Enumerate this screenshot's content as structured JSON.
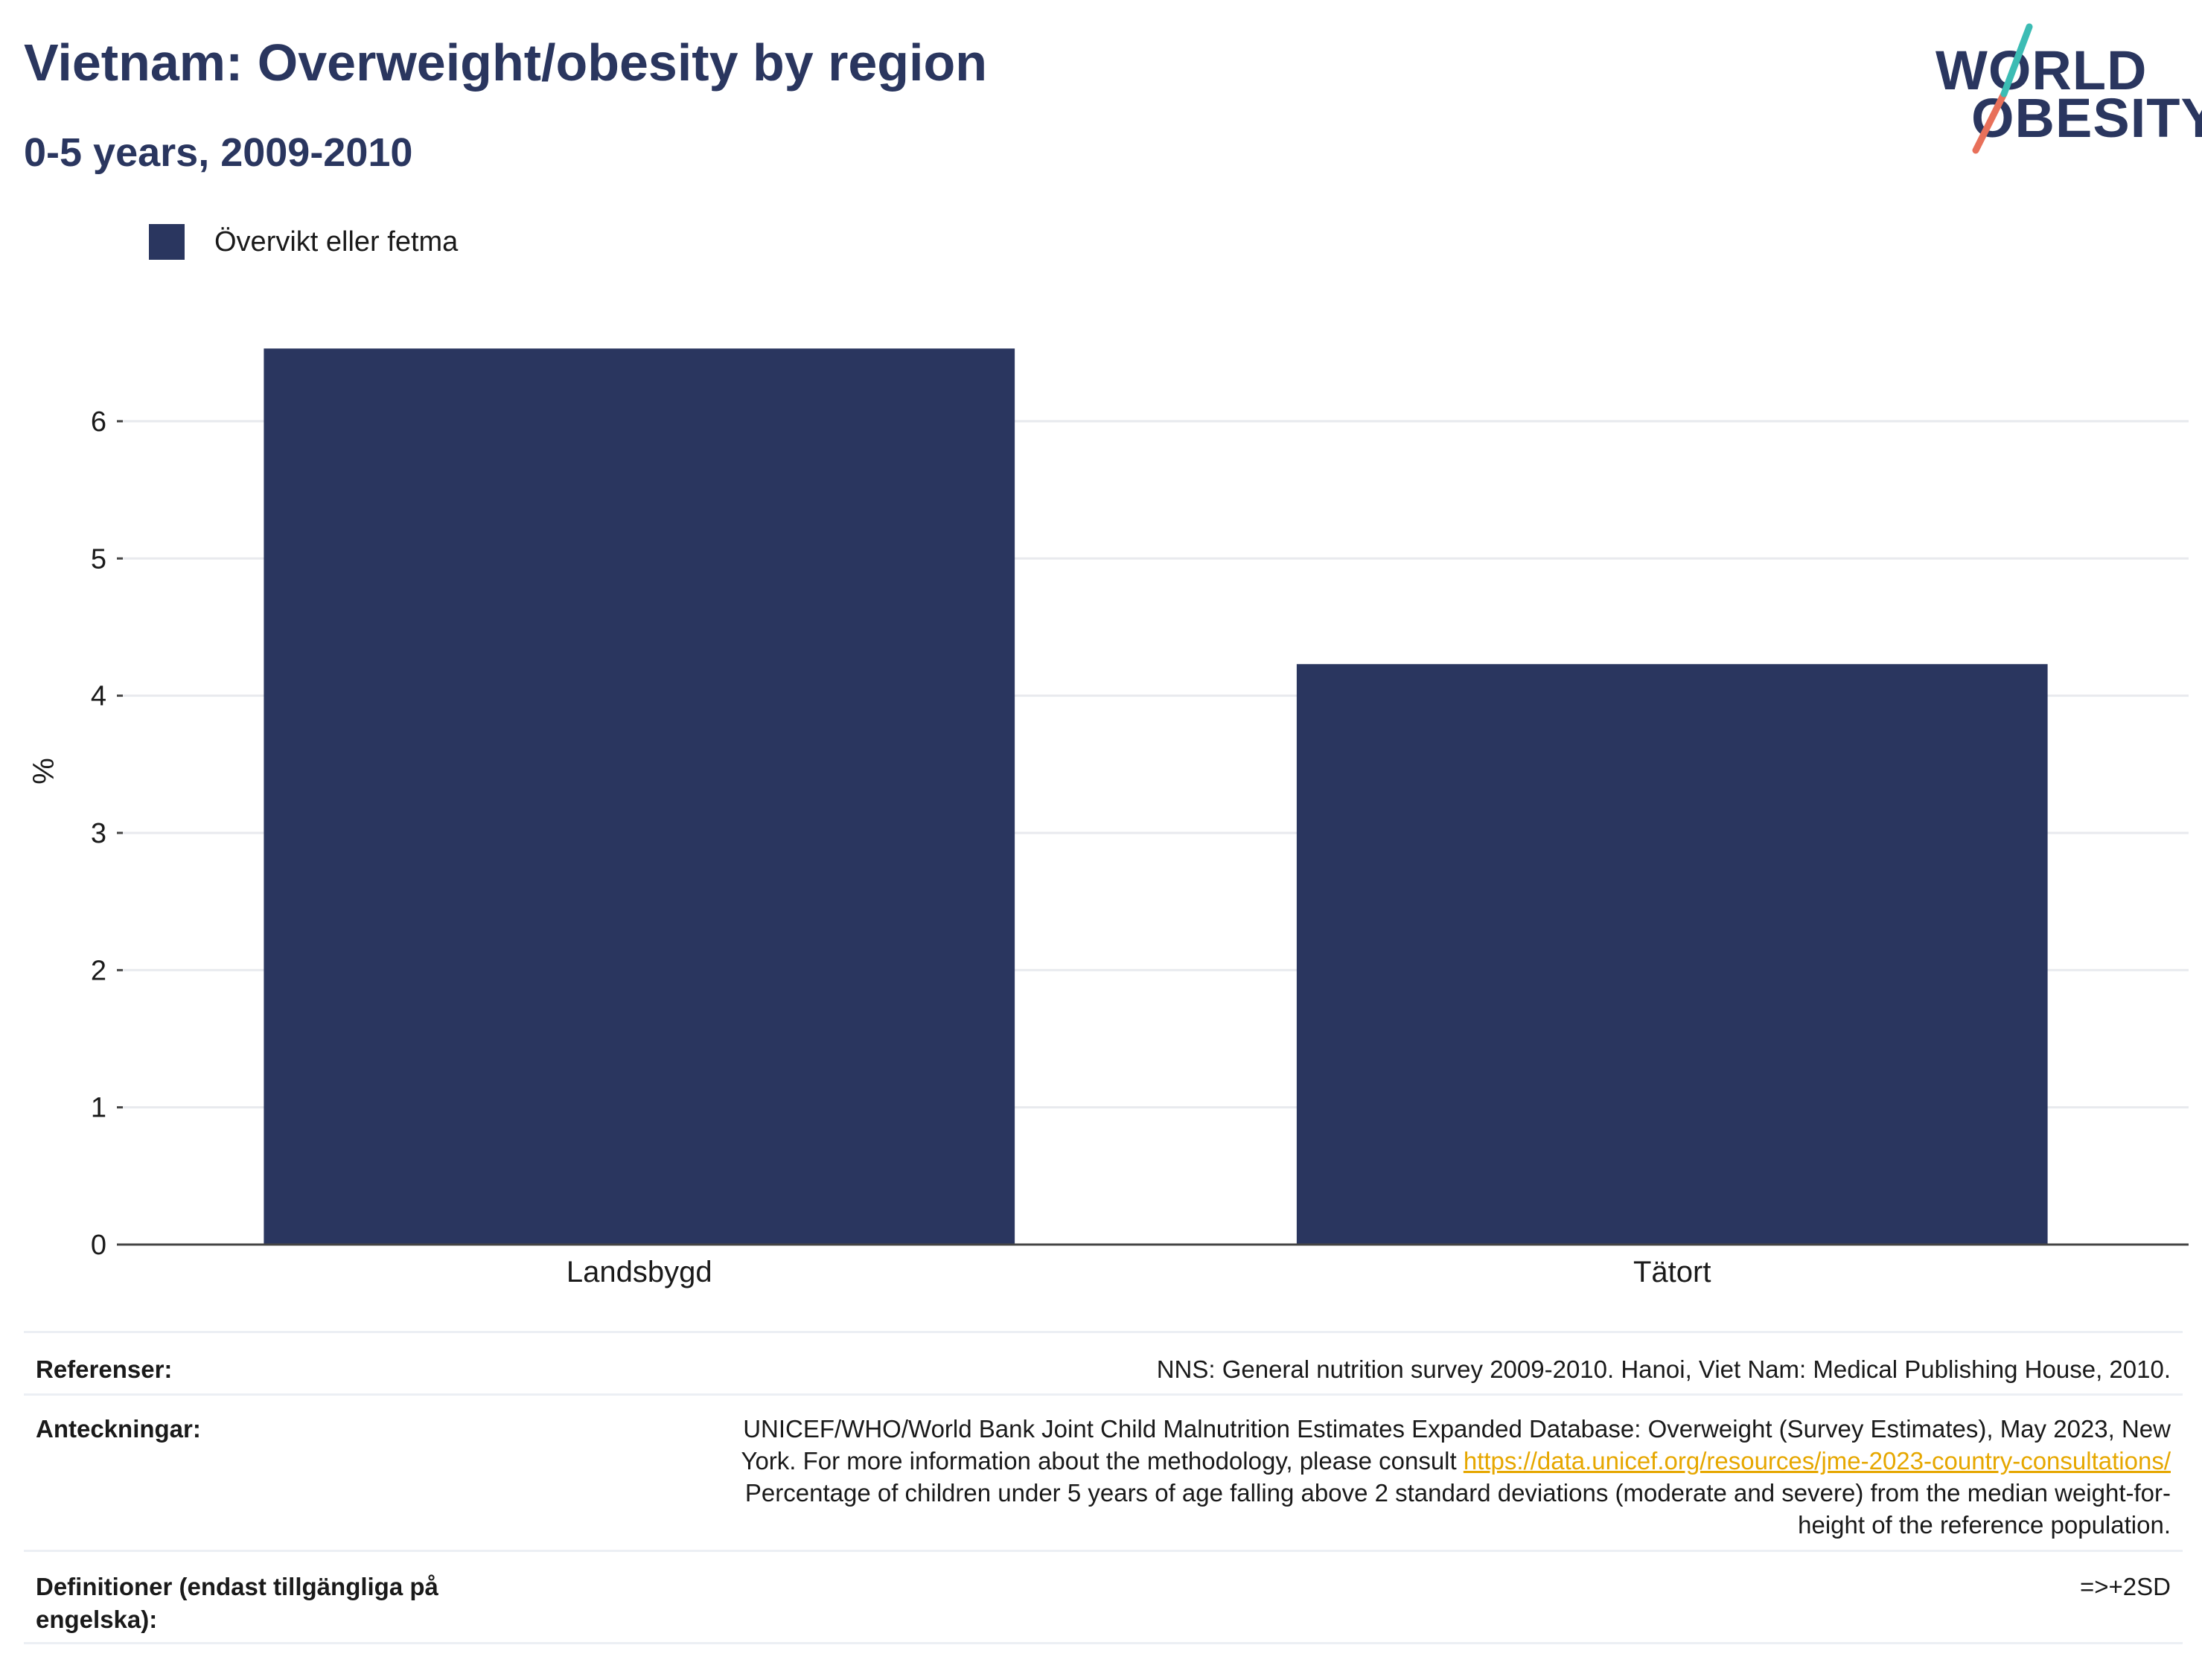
{
  "header": {
    "title": "Vietnam: Overweight/obesity by region",
    "subtitle": "0-5 years, 2009-2010"
  },
  "logo": {
    "line1": "WORLD",
    "line2": "OBESITY"
  },
  "colors": {
    "bar": "#2a365f",
    "accent_teal": "#3cbcb4",
    "accent_coral": "#e8705a",
    "link": "#e6a700"
  },
  "chart_data": {
    "type": "bar",
    "categories": [
      "Landsbygd",
      "Tätort"
    ],
    "series": [
      {
        "name": "Övervikt eller fetma",
        "values": [
          6.53,
          4.23
        ]
      }
    ],
    "ylabel": "%",
    "yticks": [
      0,
      1,
      2,
      3,
      4,
      5,
      6
    ],
    "ylim": [
      0,
      6.9
    ],
    "grid": true,
    "legend": "top-left"
  },
  "footer": {
    "references_label": "Referenser:",
    "references_value": "NNS: General nutrition survey 2009-2010. Hanoi, Viet Nam: Medical Publishing House, 2010.",
    "notes_label": "Anteckningar:",
    "notes_line1": "UNICEF/WHO/World Bank Joint Child Malnutrition Estimates Expanded Database: Overweight (Survey Estimates), May 2023, New",
    "notes_line2_prefix": "York. For more information about the methodology, please consult ",
    "notes_link": "https://data.unicef.org/resources/jme-2023-country-consultations/",
    "notes_line3": "Percentage of children under 5 years of age falling above 2 standard deviations (moderate and severe) from the median weight-for-",
    "notes_line4": "height of the reference population.",
    "definitions_label": "Definitioner (endast tillgängliga på engelska):",
    "definitions_value": "=>+2SD"
  }
}
